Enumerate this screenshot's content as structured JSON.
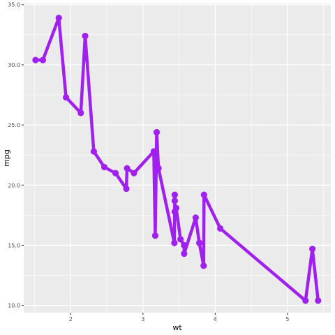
{
  "chart_data": {
    "type": "line",
    "xlabel": "wt",
    "ylabel": "mpg",
    "xlim": [
      1.35,
      5.6
    ],
    "ylim": [
      9.4,
      35.1
    ],
    "x_ticks": [
      2,
      3,
      4,
      5
    ],
    "y_ticks": [
      10,
      15,
      20,
      25,
      30,
      35
    ],
    "x_tick_labels": [
      "2",
      "3",
      "4",
      "5"
    ],
    "y_tick_labels": [
      "10.0",
      "15.0",
      "20.0",
      "25.0",
      "30.0",
      "35.0"
    ],
    "grid": true,
    "legend": "none",
    "colors": {
      "line": "#a020f0",
      "panel": "#ebebeb",
      "grid": "#ffffff",
      "tick": "#333333"
    },
    "series": [
      {
        "x": [
          1.513,
          1.615,
          1.835,
          1.935,
          2.14,
          2.2,
          2.32,
          2.465,
          2.62,
          2.77,
          2.78,
          2.875,
          3.15,
          3.17,
          3.19,
          3.215,
          3.435,
          3.44,
          3.44,
          3.44,
          3.46,
          3.52,
          3.57,
          3.57,
          3.73,
          3.78,
          3.84,
          3.845,
          4.07,
          5.25,
          5.345,
          5.424
        ],
        "y": [
          30.4,
          30.4,
          33.9,
          27.3,
          26.0,
          32.4,
          22.8,
          21.5,
          21.0,
          19.7,
          21.4,
          21.0,
          22.8,
          15.8,
          24.4,
          21.4,
          15.2,
          18.7,
          19.2,
          17.8,
          18.1,
          15.5,
          15.0,
          14.3,
          17.3,
          15.2,
          13.3,
          19.2,
          16.4,
          10.4,
          14.7,
          10.4
        ]
      }
    ]
  }
}
